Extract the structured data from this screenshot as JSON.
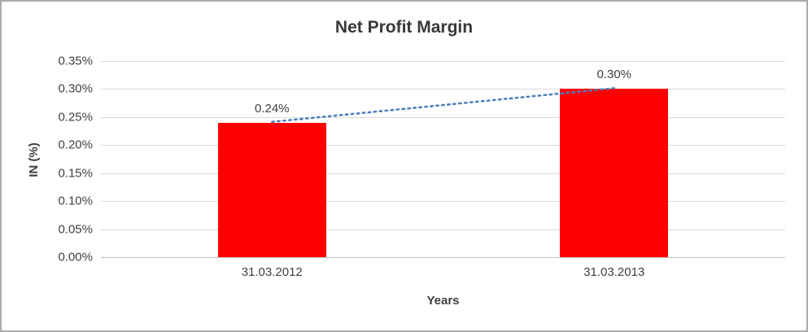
{
  "chart_data": {
    "type": "bar",
    "title": "Net Profit Margin",
    "xlabel": "Years",
    "ylabel": "IN (%)",
    "categories": [
      "31.03.2012",
      "31.03.2013"
    ],
    "values": [
      0.24,
      0.3
    ],
    "value_labels": [
      "0.24%",
      "0.30%"
    ],
    "ylim": [
      0,
      0.35
    ],
    "ytick_step": 0.05,
    "ytick_labels": [
      "0.00%",
      "0.05%",
      "0.10%",
      "0.15%",
      "0.20%",
      "0.25%",
      "0.30%",
      "0.35%"
    ],
    "bar_color": "#ff0000",
    "trendline_color": "#4a7ebb",
    "gridline_color": "#d9d9d9",
    "grid": true,
    "legend": false
  }
}
